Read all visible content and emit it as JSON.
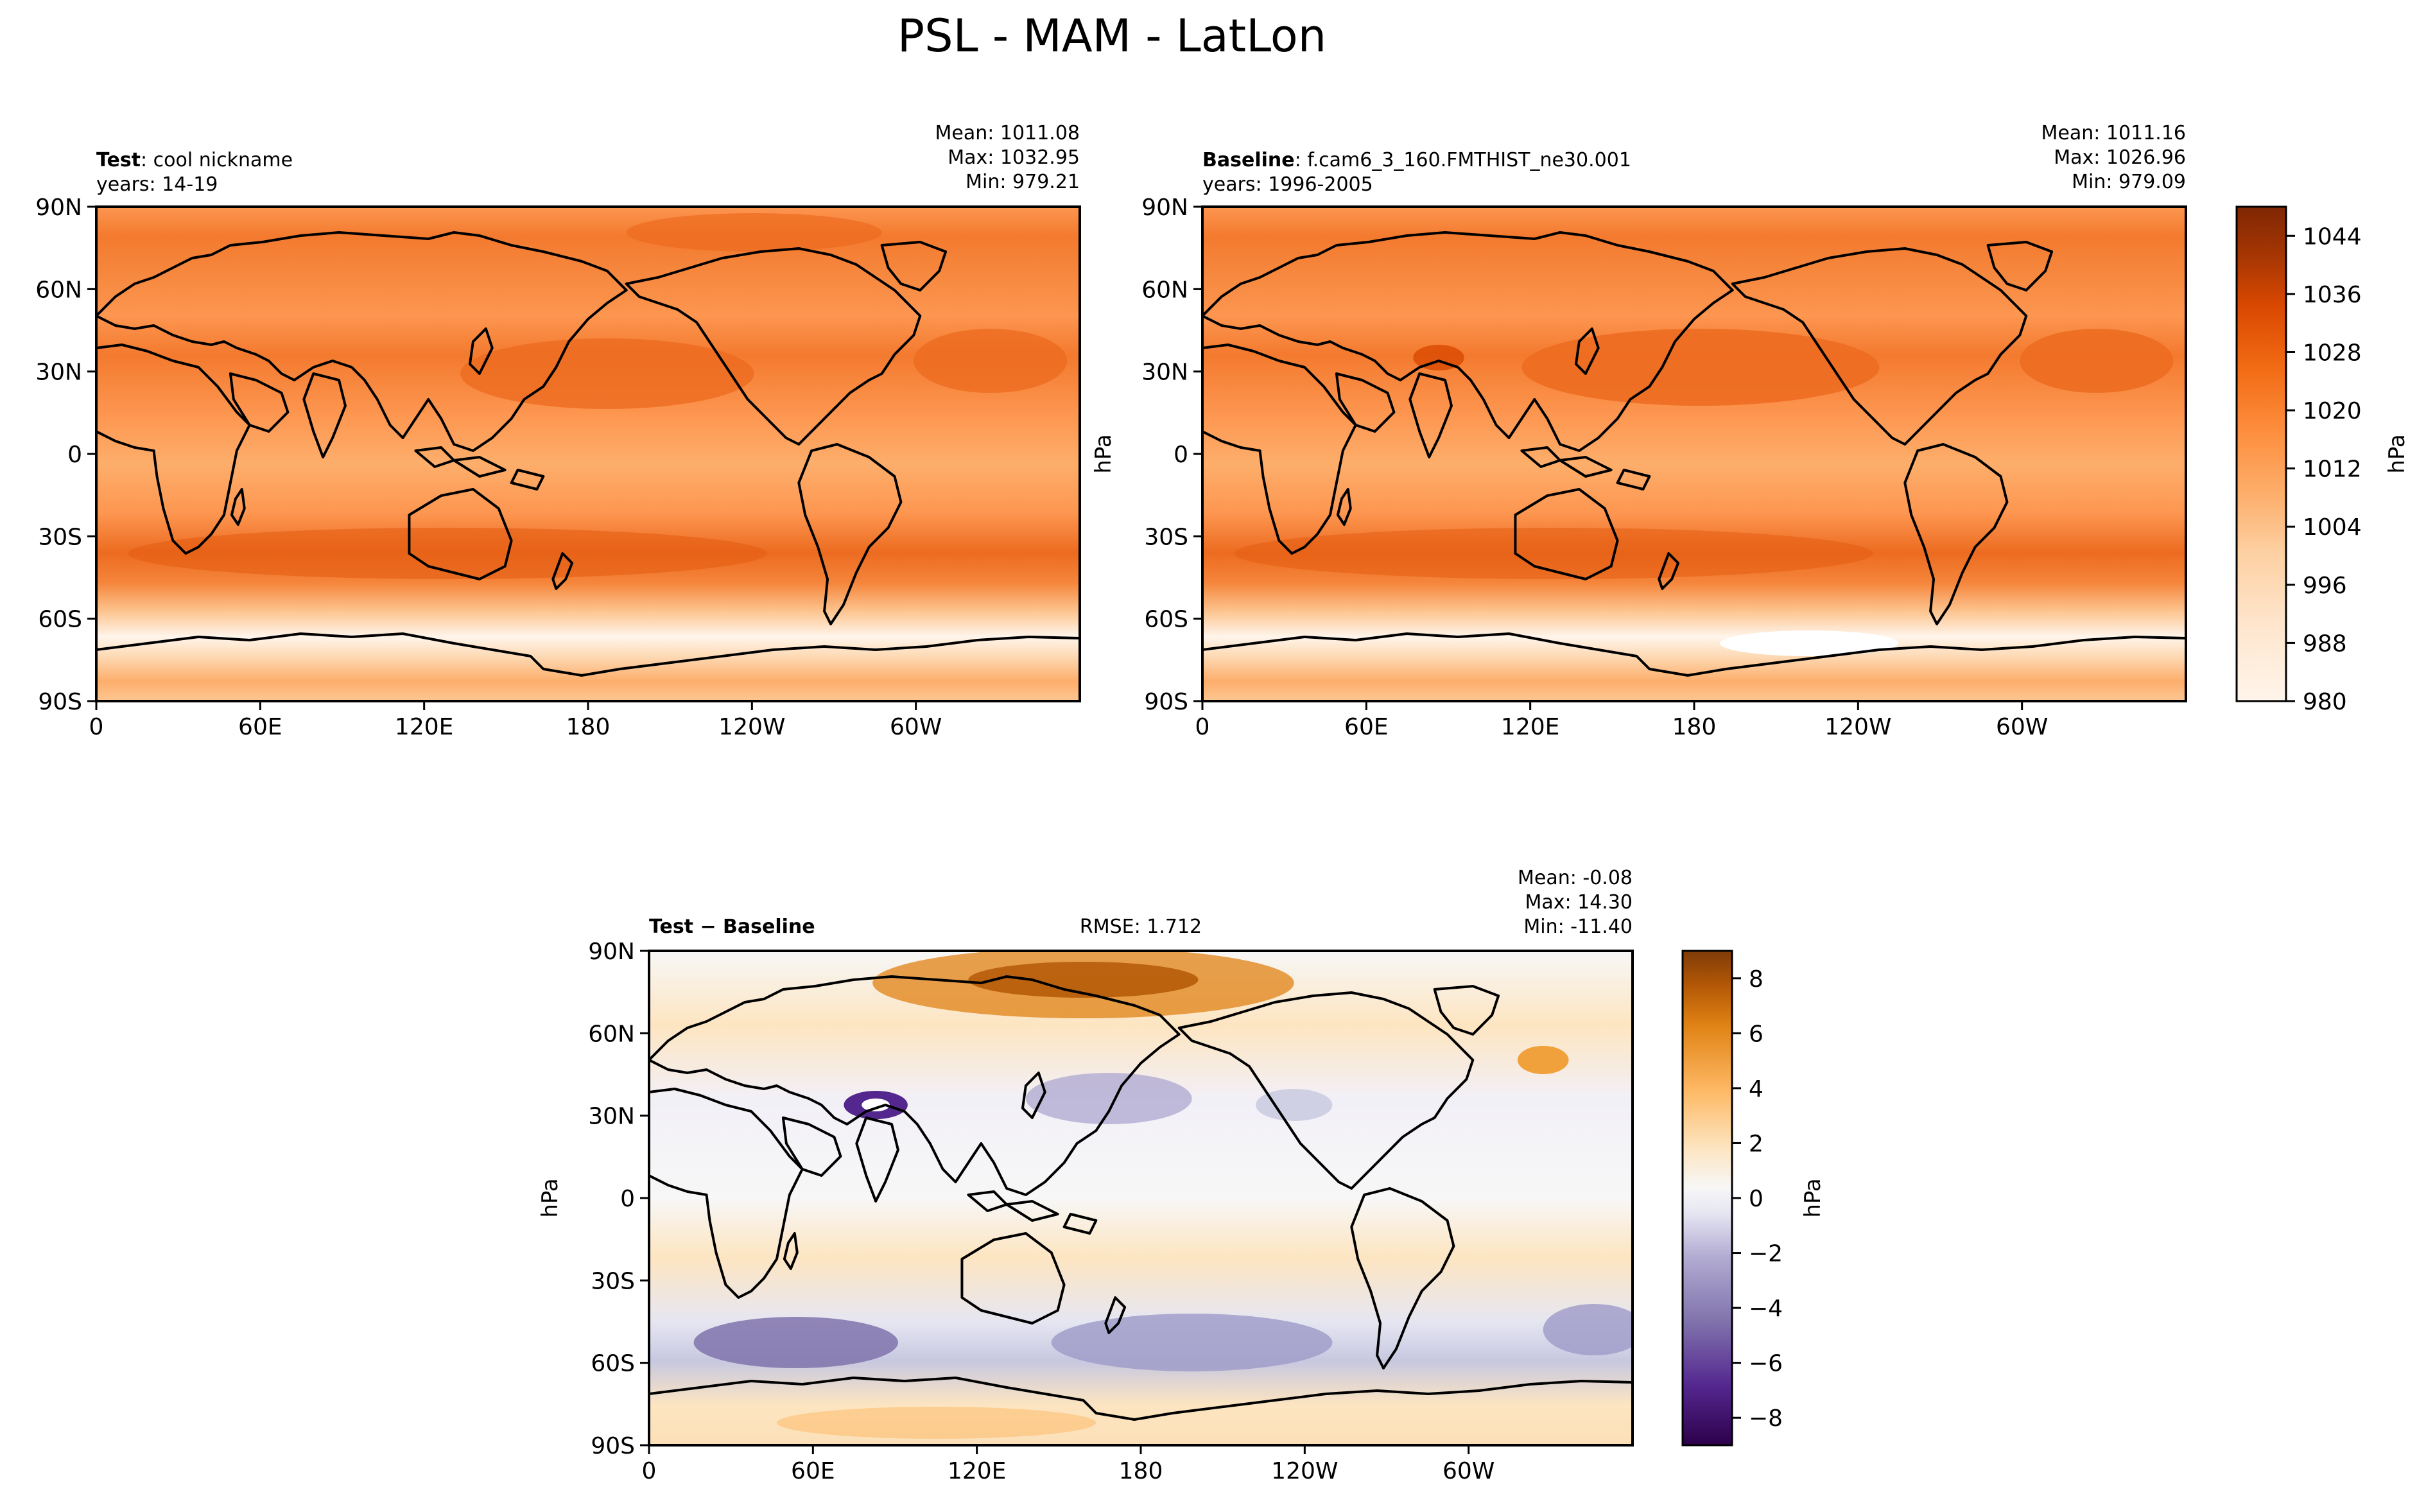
{
  "figure_title": "PSL - MAM - LatLon",
  "colors": {
    "orange_scale": [
      "#fff5eb",
      "#fee9d3",
      "#fdd9b3",
      "#fdc692",
      "#fdae6b",
      "#fd9650",
      "#f5853b",
      "#f37a2f",
      "#ec6b20",
      "#e45d13",
      "#d94801",
      "#c04002",
      "#a63603",
      "#7f2704"
    ],
    "diff_scale": [
      "#2d004b",
      "#54278f",
      "#776ab1",
      "#9e9ac8",
      "#c7c8e0",
      "#e6e6f2",
      "#f7f7f7",
      "#fde5c1",
      "#fbc989",
      "#f0a13b",
      "#d5790f",
      "#b35806",
      "#7f3b08"
    ],
    "land_outline": "#000000"
  },
  "panels": {
    "test": {
      "label_bold": "Test",
      "label_rest": ": cool nickname",
      "years": "years: 14-19",
      "mean": "Mean: 1011.08",
      "max": "Max: 1032.95",
      "min": "Min: 979.21"
    },
    "baseline": {
      "label_bold": "Baseline",
      "label_rest": ": f.cam6_3_160.FMTHIST_ne30.001",
      "years": "years: 1996-2005",
      "mean": "Mean: 1011.16",
      "max": "Max: 1026.96",
      "min": "Min: 979.09"
    },
    "diff": {
      "label": "Test − Baseline",
      "rmse": "RMSE: 1.712",
      "mean": "Mean: -0.08",
      "max": "Max: 14.30",
      "min": "Min: -11.40"
    }
  },
  "chart_data": [
    {
      "type": "heatmap",
      "title": "Test: cool nickname (years: 14-19)",
      "variable": "PSL",
      "units": "hPa",
      "x_ticks": [
        "0",
        "60E",
        "120E",
        "180",
        "120W",
        "60W"
      ],
      "y_ticks": [
        "90N",
        "60N",
        "30N",
        "0",
        "30S",
        "60S",
        "90S"
      ],
      "stats": {
        "mean": 1011.08,
        "max": 1032.95,
        "min": 979.21
      }
    },
    {
      "type": "heatmap",
      "title": "Baseline: f.cam6_3_160.FMTHIST_ne30.001 (years: 1996-2005)",
      "variable": "PSL",
      "units": "hPa",
      "x_ticks": [
        "0",
        "60E",
        "120E",
        "180",
        "120W",
        "60W"
      ],
      "y_ticks": [
        "90N",
        "60N",
        "30N",
        "0",
        "30S",
        "60S",
        "90S"
      ],
      "stats": {
        "mean": 1011.16,
        "max": 1026.96,
        "min": 979.09
      }
    },
    {
      "type": "heatmap",
      "title": "Test − Baseline",
      "units": "hPa",
      "x_ticks": [
        "0",
        "60E",
        "120E",
        "180",
        "120W",
        "60W"
      ],
      "y_ticks": [
        "90N",
        "60N",
        "30N",
        "0",
        "30S",
        "60S",
        "90S"
      ],
      "stats": {
        "mean": -0.08,
        "max": 14.3,
        "min": -11.4,
        "rmse": 1.712
      }
    }
  ],
  "colorbars": {
    "main": {
      "label": "hPa",
      "range": [
        980,
        1048
      ],
      "ticks": [
        "1044",
        "1036",
        "1028",
        "1020",
        "1012",
        "1004",
        "996",
        "988",
        "980"
      ]
    },
    "diff": {
      "label": "hPa",
      "range": [
        -9,
        9
      ],
      "ticks": [
        "8",
        "6",
        "4",
        "2",
        "0",
        "−2",
        "−4",
        "−6",
        "−8"
      ]
    }
  },
  "y_axis_label": "hPa"
}
